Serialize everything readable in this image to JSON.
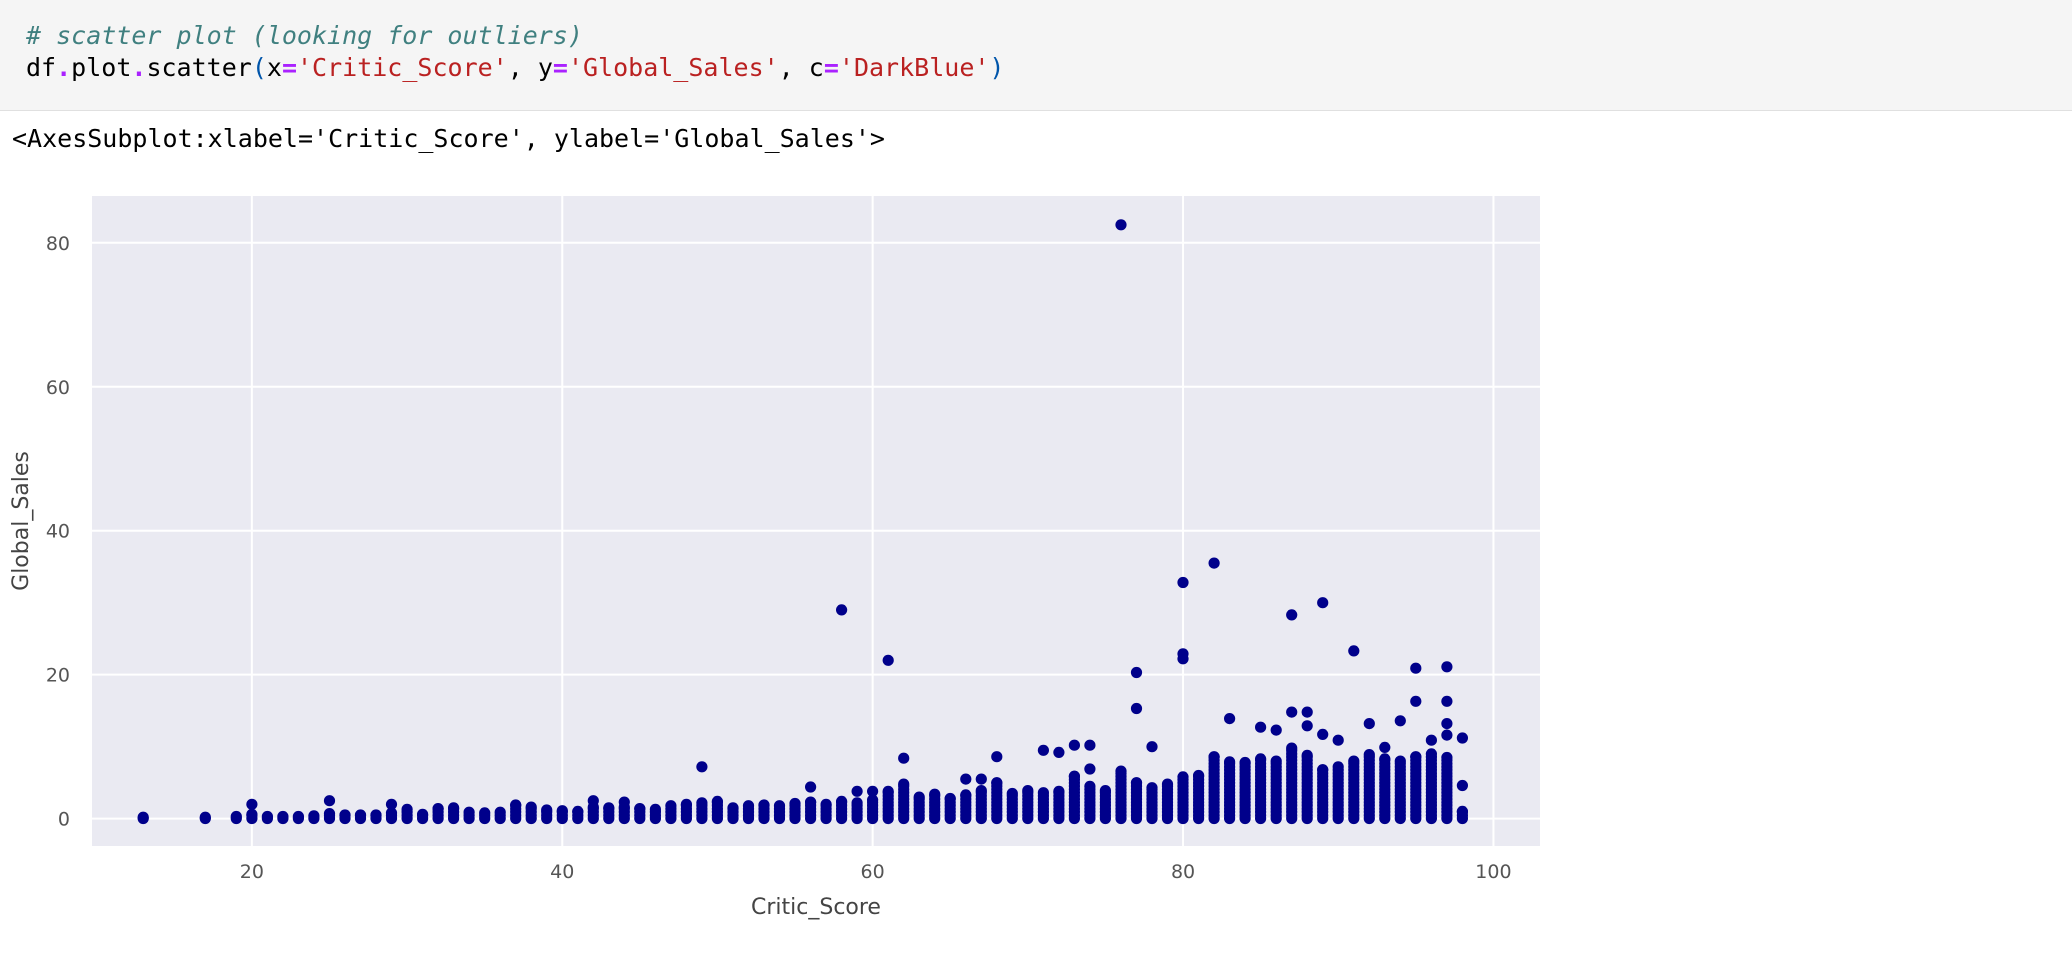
{
  "code_cell": {
    "comment": "# scatter plot (looking for outliers)",
    "call": {
      "obj": "df",
      "dot1": ".",
      "attr": "plot",
      "dot2": ".",
      "method": "scatter",
      "open": "(",
      "k1": "x",
      "eq1": "=",
      "v1": "'Critic_Score'",
      "sep1": ", ",
      "k2": "y",
      "eq2": "=",
      "v2": "'Global_Sales'",
      "sep2": ", ",
      "k3": "c",
      "eq3": "=",
      "v3": "'DarkBlue'",
      "close": ")"
    }
  },
  "output_text": "<AxesSubplot:xlabel='Critic_Score', ylabel='Global_Sales'>",
  "chart_data": {
    "type": "scatter",
    "xlabel": "Critic_Score",
    "ylabel": "Global_Sales",
    "xlim": [
      9.7,
      103.0
    ],
    "ylim": [
      -3.8,
      86.5
    ],
    "xticks": [
      20,
      40,
      60,
      80,
      100
    ],
    "yticks": [
      0,
      20,
      40,
      60,
      80
    ],
    "grid": true,
    "color": "#00008b",
    "background": "#eaeaf2",
    "outliers": [
      [
        76,
        82.5
      ],
      [
        82,
        35.5
      ],
      [
        80,
        32.8
      ],
      [
        89,
        30.0
      ],
      [
        58,
        29.0
      ],
      [
        87,
        28.3
      ],
      [
        91,
        23.3
      ],
      [
        80,
        22.9
      ],
      [
        80,
        22.2
      ],
      [
        61,
        22.0
      ],
      [
        95,
        20.9
      ],
      [
        97,
        21.1
      ],
      [
        77,
        20.3
      ],
      [
        95,
        16.3
      ],
      [
        97,
        16.3
      ],
      [
        77,
        15.3
      ],
      [
        87,
        14.8
      ],
      [
        88,
        14.8
      ],
      [
        83,
        13.9
      ],
      [
        94,
        13.6
      ],
      [
        92,
        13.2
      ],
      [
        97,
        13.2
      ],
      [
        88,
        12.9
      ],
      [
        85,
        12.7
      ],
      [
        86,
        12.3
      ],
      [
        89,
        11.7
      ],
      [
        97,
        11.6
      ],
      [
        98,
        11.2
      ],
      [
        90,
        10.9
      ],
      [
        96,
        10.9
      ],
      [
        73,
        10.2
      ],
      [
        74,
        10.2
      ],
      [
        78,
        10.0
      ],
      [
        71,
        9.5
      ],
      [
        72,
        9.2
      ],
      [
        93,
        9.9
      ],
      [
        68,
        8.6
      ],
      [
        62,
        8.4
      ],
      [
        49,
        7.2
      ],
      [
        74,
        6.9
      ],
      [
        66,
        5.5
      ],
      [
        67,
        5.5
      ],
      [
        56,
        4.4
      ],
      [
        98,
        4.6
      ],
      [
        59,
        3.8
      ],
      [
        60,
        3.8
      ],
      [
        25,
        2.5
      ],
      [
        20,
        2.0
      ],
      [
        29,
        2.0
      ],
      [
        42,
        2.5
      ],
      [
        44,
        2.3
      ]
    ],
    "bulk_series": [
      {
        "x": 13,
        "ymax": 0.2
      },
      {
        "x": 17,
        "ymax": 0.2
      },
      {
        "x": 19,
        "ymax": 0.3
      },
      {
        "x": 20,
        "ymax": 0.6
      },
      {
        "x": 21,
        "ymax": 0.3
      },
      {
        "x": 22,
        "ymax": 0.3
      },
      {
        "x": 23,
        "ymax": 0.3
      },
      {
        "x": 24,
        "ymax": 0.4
      },
      {
        "x": 25,
        "ymax": 0.7
      },
      {
        "x": 26,
        "ymax": 0.5
      },
      {
        "x": 27,
        "ymax": 0.5
      },
      {
        "x": 28,
        "ymax": 0.5
      },
      {
        "x": 29,
        "ymax": 0.8
      },
      {
        "x": 30,
        "ymax": 1.3
      },
      {
        "x": 31,
        "ymax": 0.6
      },
      {
        "x": 32,
        "ymax": 1.4
      },
      {
        "x": 33,
        "ymax": 1.5
      },
      {
        "x": 34,
        "ymax": 0.9
      },
      {
        "x": 35,
        "ymax": 0.8
      },
      {
        "x": 36,
        "ymax": 0.9
      },
      {
        "x": 37,
        "ymax": 1.9
      },
      {
        "x": 38,
        "ymax": 1.6
      },
      {
        "x": 39,
        "ymax": 1.2
      },
      {
        "x": 40,
        "ymax": 1.1
      },
      {
        "x": 41,
        "ymax": 1.0
      },
      {
        "x": 42,
        "ymax": 1.6
      },
      {
        "x": 43,
        "ymax": 1.5
      },
      {
        "x": 44,
        "ymax": 1.6
      },
      {
        "x": 45,
        "ymax": 1.4
      },
      {
        "x": 46,
        "ymax": 1.3
      },
      {
        "x": 47,
        "ymax": 1.8
      },
      {
        "x": 48,
        "ymax": 2.0
      },
      {
        "x": 49,
        "ymax": 2.2
      },
      {
        "x": 50,
        "ymax": 2.4
      },
      {
        "x": 51,
        "ymax": 1.5
      },
      {
        "x": 52,
        "ymax": 1.8
      },
      {
        "x": 53,
        "ymax": 1.9
      },
      {
        "x": 54,
        "ymax": 1.8
      },
      {
        "x": 55,
        "ymax": 2.1
      },
      {
        "x": 56,
        "ymax": 2.3
      },
      {
        "x": 57,
        "ymax": 2.0
      },
      {
        "x": 58,
        "ymax": 2.4
      },
      {
        "x": 59,
        "ymax": 2.2
      },
      {
        "x": 60,
        "ymax": 2.6
      },
      {
        "x": 61,
        "ymax": 3.8
      },
      {
        "x": 62,
        "ymax": 4.8
      },
      {
        "x": 63,
        "ymax": 3.0
      },
      {
        "x": 64,
        "ymax": 3.4
      },
      {
        "x": 65,
        "ymax": 2.8
      },
      {
        "x": 66,
        "ymax": 3.3
      },
      {
        "x": 67,
        "ymax": 3.9
      },
      {
        "x": 68,
        "ymax": 5.0
      },
      {
        "x": 69,
        "ymax": 3.5
      },
      {
        "x": 70,
        "ymax": 3.9
      },
      {
        "x": 71,
        "ymax": 3.6
      },
      {
        "x": 72,
        "ymax": 3.8
      },
      {
        "x": 73,
        "ymax": 5.9
      },
      {
        "x": 74,
        "ymax": 4.5
      },
      {
        "x": 75,
        "ymax": 3.9
      },
      {
        "x": 76,
        "ymax": 6.6
      },
      {
        "x": 77,
        "ymax": 5.0
      },
      {
        "x": 78,
        "ymax": 4.3
      },
      {
        "x": 79,
        "ymax": 4.8
      },
      {
        "x": 80,
        "ymax": 5.8
      },
      {
        "x": 81,
        "ymax": 6.0
      },
      {
        "x": 82,
        "ymax": 8.6
      },
      {
        "x": 83,
        "ymax": 7.9
      },
      {
        "x": 84,
        "ymax": 7.8
      },
      {
        "x": 85,
        "ymax": 8.3
      },
      {
        "x": 86,
        "ymax": 8.0
      },
      {
        "x": 87,
        "ymax": 9.8
      },
      {
        "x": 88,
        "ymax": 8.8
      },
      {
        "x": 89,
        "ymax": 6.8
      },
      {
        "x": 90,
        "ymax": 7.2
      },
      {
        "x": 91,
        "ymax": 8.0
      },
      {
        "x": 92,
        "ymax": 8.9
      },
      {
        "x": 93,
        "ymax": 8.3
      },
      {
        "x": 94,
        "ymax": 8.0
      },
      {
        "x": 95,
        "ymax": 8.6
      },
      {
        "x": 96,
        "ymax": 9.0
      },
      {
        "x": 97,
        "ymax": 8.5
      },
      {
        "x": 98,
        "ymax": 1.0
      }
    ]
  }
}
